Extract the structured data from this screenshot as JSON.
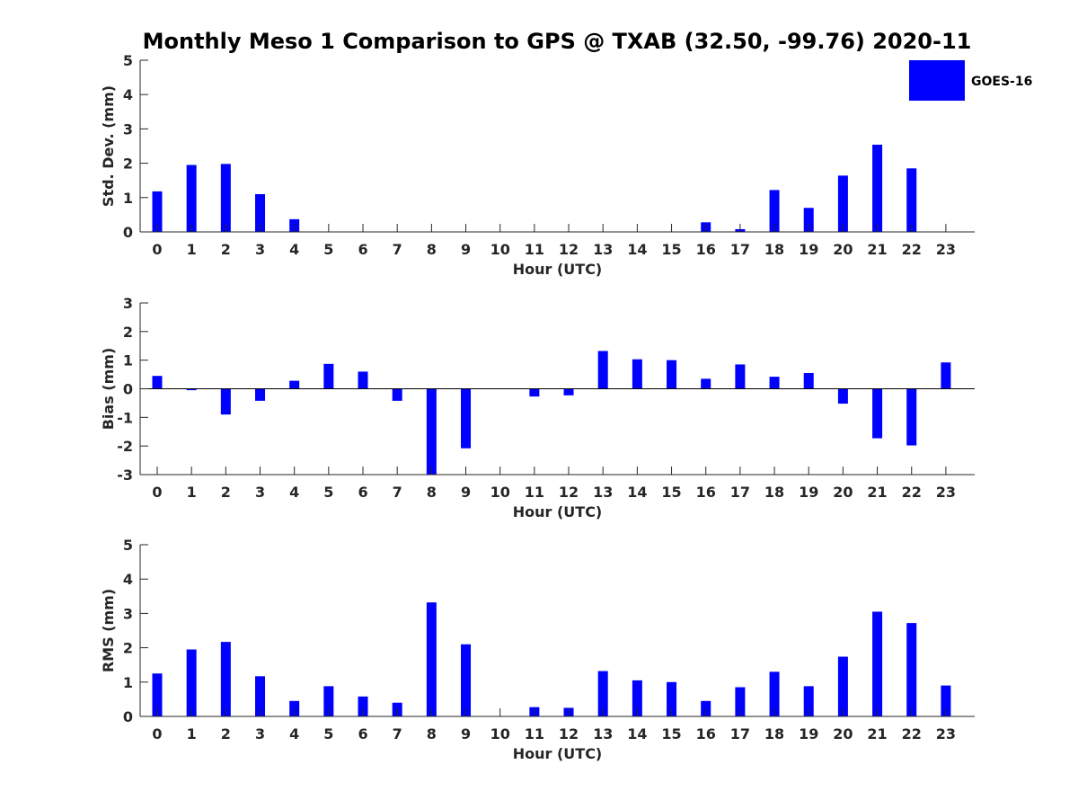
{
  "chart_data": {
    "type": "bar",
    "title": "Monthly Meso 1 Comparison to GPS @ TXAB (32.50, -99.76) 2020-11",
    "bar_color": "#0000ff",
    "legend": {
      "label": "GOES-16",
      "placement": "top-right"
    },
    "categories": [
      "0",
      "1",
      "2",
      "3",
      "4",
      "5",
      "6",
      "7",
      "8",
      "9",
      "10",
      "11",
      "12",
      "13",
      "14",
      "15",
      "16",
      "17",
      "18",
      "19",
      "20",
      "21",
      "22",
      "23"
    ],
    "panels": [
      {
        "name": "std-dev",
        "ylabel": "Std. Dev. (mm)",
        "xlabel": "Hour (UTC)",
        "ylim": [
          0,
          5
        ],
        "yticks": [
          0,
          1,
          2,
          3,
          4,
          5
        ],
        "series": [
          {
            "name": "GOES-16",
            "values": [
              1.18,
              1.95,
              1.98,
              1.1,
              0.37,
              0,
              0,
              0,
              0,
              0,
              0,
              0,
              0,
              0,
              0,
              0,
              0.28,
              0.08,
              1.22,
              0.7,
              1.64,
              2.54,
              1.85,
              0
            ]
          }
        ]
      },
      {
        "name": "bias",
        "ylabel": "Bias (mm)",
        "xlabel": "Hour (UTC)",
        "ylim": [
          -3,
          3
        ],
        "yticks": [
          -3,
          -2,
          -1,
          0,
          1,
          2,
          3
        ],
        "series": [
          {
            "name": "GOES-16",
            "values": [
              0.45,
              -0.05,
              -0.9,
              -0.42,
              0.28,
              0.87,
              0.6,
              -0.42,
              -3.0,
              -2.08,
              0,
              -0.27,
              -0.23,
              1.32,
              1.03,
              1.0,
              0.35,
              0.85,
              0.42,
              0.55,
              -0.52,
              -1.73,
              -1.98,
              0.92
            ]
          }
        ]
      },
      {
        "name": "rms",
        "ylabel": "RMS (mm)",
        "xlabel": "Hour (UTC)",
        "ylim": [
          0,
          5
        ],
        "yticks": [
          0,
          1,
          2,
          3,
          4,
          5
        ],
        "series": [
          {
            "name": "GOES-16",
            "values": [
              1.25,
              1.95,
              2.17,
              1.17,
              0.45,
              0.88,
              0.58,
              0.4,
              3.32,
              2.1,
              0,
              0.27,
              0.25,
              1.32,
              1.05,
              1.0,
              0.45,
              0.85,
              1.3,
              0.88,
              1.74,
              3.05,
              2.72,
              0.9
            ]
          }
        ]
      }
    ]
  }
}
